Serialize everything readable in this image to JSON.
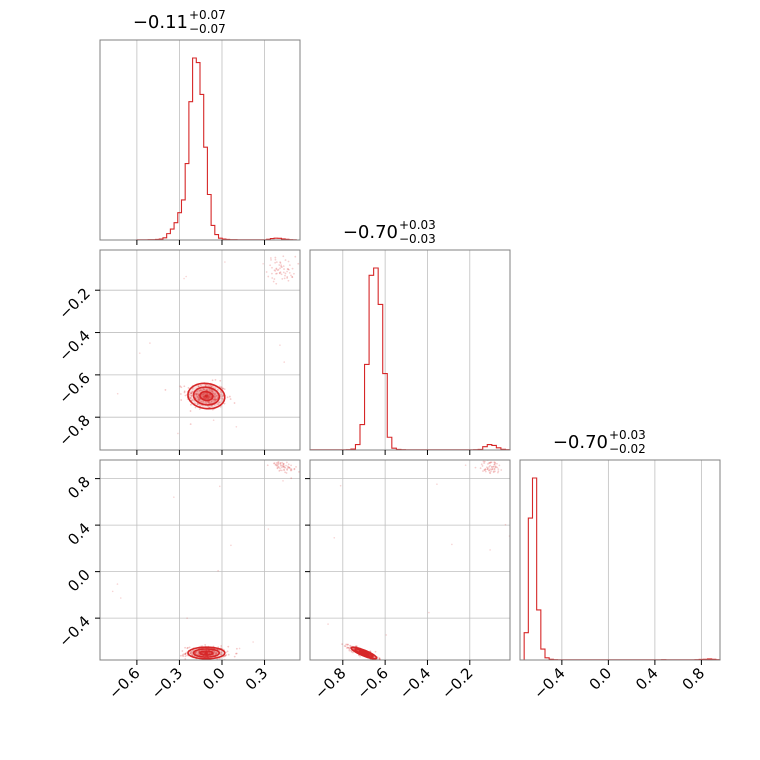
{
  "chart_data": {
    "type": "corner",
    "color": "#d62728",
    "grid": true,
    "parameters": [
      {
        "index": 0,
        "range": [
          -0.86,
          0.55
        ],
        "ticks": [
          -0.6,
          -0.3,
          0.0,
          0.3
        ],
        "tick_labels": [
          "−0.6",
          "−0.3",
          "0.0",
          "0.3"
        ],
        "median": -0.11,
        "plus": 0.07,
        "minus": 0.07
      },
      {
        "index": 1,
        "range": [
          -0.955,
          -0.01
        ],
        "ticks": [
          -0.8,
          -0.6,
          -0.4,
          -0.2
        ],
        "tick_labels": [
          "−0.8",
          "−0.6",
          "−0.4",
          "−0.2"
        ],
        "median": -0.7,
        "plus": 0.03,
        "minus": 0.03
      },
      {
        "index": 2,
        "range": [
          -0.76,
          0.96
        ],
        "ticks": [
          -0.4,
          0.0,
          0.4,
          0.8
        ],
        "tick_labels": [
          "−0.4",
          "0.0",
          "0.4",
          "0.8"
        ],
        "median": -0.7,
        "plus": 0.03,
        "minus": 0.02
      }
    ],
    "titles": [
      {
        "main": "−0.11",
        "sup": "+0.07",
        "sub": "−0.07"
      },
      {
        "main": "−0.70",
        "sup": "+0.03",
        "sub": "−0.03"
      },
      {
        "main": "−0.70",
        "sup": "+0.03",
        "sub": "−0.02"
      }
    ],
    "histograms": [
      {
        "edges": [
          -0.86,
          0.55
        ],
        "counts": [
          0,
          0,
          0,
          0,
          0,
          0,
          0,
          0,
          0,
          0,
          1,
          1,
          1,
          2,
          2,
          3,
          5,
          12,
          35,
          60,
          95,
          150,
          220,
          420,
          760,
          1000,
          975,
          800,
          510,
          250,
          80,
          30,
          10,
          5,
          3,
          2,
          2,
          1,
          1,
          1,
          1,
          1,
          1,
          1,
          1,
          4,
          8,
          10,
          9,
          6,
          4,
          2,
          1,
          0
        ]
      },
      {
        "edges": [
          -0.955,
          -0.01
        ],
        "counts": [
          1,
          1,
          1,
          1,
          1,
          1,
          1,
          1,
          2,
          5,
          30,
          140,
          470,
          960,
          1000,
          800,
          420,
          70,
          10,
          3,
          2,
          1,
          1,
          1,
          1,
          1,
          1,
          1,
          1,
          1,
          1,
          1,
          1,
          1,
          1,
          1,
          2,
          3,
          18,
          30,
          25,
          12,
          4,
          2
        ]
      },
      {
        "edges": [
          -0.76,
          0.96
        ],
        "counts": [
          0,
          150,
          780,
          1000,
          275,
          60,
          12,
          4,
          2,
          1,
          1,
          1,
          1,
          1,
          1,
          1,
          1,
          1,
          1,
          1,
          1,
          1,
          1,
          1,
          1,
          1,
          1,
          1,
          1,
          1,
          1,
          1,
          1,
          1,
          2,
          1,
          1,
          1,
          1,
          1,
          1,
          1,
          2,
          3,
          4,
          6,
          4,
          2
        ]
      }
    ],
    "main_mode": {
      "mean": [
        -0.11,
        -0.7,
        -0.7
      ],
      "std": [
        0.065,
        0.03,
        0.025
      ],
      "correlation": {
        "1-0": -0.1,
        "2-0": 0.0,
        "2-1": -0.85
      }
    },
    "secondary_mode": {
      "mean": [
        0.42,
        -0.1,
        0.9
      ],
      "std": [
        0.05,
        0.03,
        0.03
      ]
    },
    "contour_levels": 3
  }
}
